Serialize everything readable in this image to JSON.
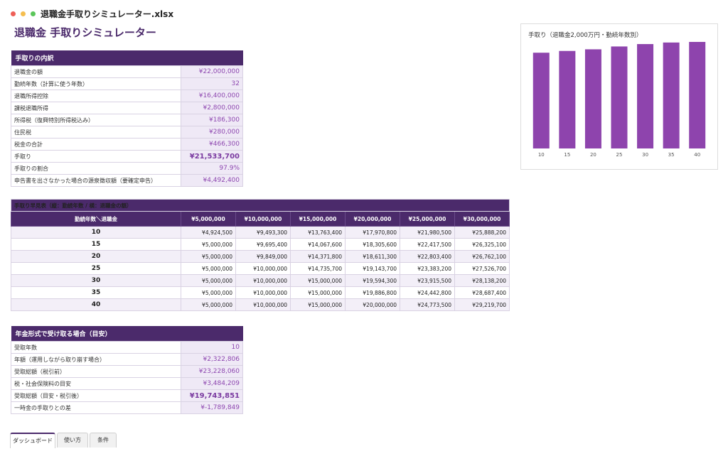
{
  "window": {
    "title": "退職金手取りシミュレーター.xlsx"
  },
  "page": {
    "title": "退職金 手取りシミュレーター"
  },
  "breakdown": {
    "header": "手取りの内訳",
    "rows": [
      {
        "label": "退職金の額",
        "value": "¥22,000,000"
      },
      {
        "label": "勤続年数（計算に使う年数）",
        "value": "32"
      },
      {
        "label": "退職所得控除",
        "value": "¥16,400,000"
      },
      {
        "label": "課税退職所得",
        "value": "¥2,800,000"
      },
      {
        "label": "所得税（復興特別所得税込み）",
        "value": "¥186,300"
      },
      {
        "label": "住民税",
        "value": "¥280,000"
      },
      {
        "label": "税金の合計",
        "value": "¥466,300"
      },
      {
        "label": "手取り",
        "value": "¥21,533,700"
      },
      {
        "label": "手取りの割合",
        "value": "97.9%"
      },
      {
        "label": "申告書を出さなかった場合の源泉徴収額（要確定申告）",
        "value": "¥4,492,400"
      }
    ]
  },
  "quicktable": {
    "header": "手取り早見表（縦：勤続年数 / 横：退職金の額）",
    "corner": "勤続年数＼退職金",
    "columns": [
      "¥5,000,000",
      "¥10,000,000",
      "¥15,000,000",
      "¥20,000,000",
      "¥25,000,000",
      "¥30,000,000"
    ],
    "rows": [
      {
        "years": "10",
        "values": [
          "¥4,924,500",
          "¥9,493,300",
          "¥13,763,400",
          "¥17,970,800",
          "¥21,980,500",
          "¥25,888,200"
        ]
      },
      {
        "years": "15",
        "values": [
          "¥5,000,000",
          "¥9,695,400",
          "¥14,067,600",
          "¥18,305,600",
          "¥22,417,500",
          "¥26,325,100"
        ]
      },
      {
        "years": "20",
        "values": [
          "¥5,000,000",
          "¥9,849,000",
          "¥14,371,800",
          "¥18,611,300",
          "¥22,803,400",
          "¥26,762,100"
        ]
      },
      {
        "years": "25",
        "values": [
          "¥5,000,000",
          "¥10,000,000",
          "¥14,735,700",
          "¥19,143,700",
          "¥23,383,200",
          "¥27,526,700"
        ]
      },
      {
        "years": "30",
        "values": [
          "¥5,000,000",
          "¥10,000,000",
          "¥15,000,000",
          "¥19,594,300",
          "¥23,915,500",
          "¥28,138,200"
        ]
      },
      {
        "years": "35",
        "values": [
          "¥5,000,000",
          "¥10,000,000",
          "¥15,000,000",
          "¥19,886,800",
          "¥24,442,800",
          "¥28,687,400"
        ]
      },
      {
        "years": "40",
        "values": [
          "¥5,000,000",
          "¥10,000,000",
          "¥15,000,000",
          "¥20,000,000",
          "¥24,773,500",
          "¥29,219,700"
        ]
      }
    ]
  },
  "pension": {
    "header": "年金形式で受け取る場合（目安）",
    "rows": [
      {
        "label": "受取年数",
        "value": "10"
      },
      {
        "label": "年額（運用しながら取り崩す場合）",
        "value": "¥2,322,806"
      },
      {
        "label": "受取総額（税引前）",
        "value": "¥23,228,060"
      },
      {
        "label": "税・社会保険料の目安",
        "value": "¥3,484,209"
      },
      {
        "label": "受取総額（目安・税引後）",
        "value": "¥19,743,851"
      },
      {
        "label": "一時金の手取りとの差",
        "value": "¥-1,789,849"
      }
    ]
  },
  "chart_data": {
    "type": "bar",
    "title": "手取り（退職金2,000万円・勤続年数別）",
    "categories": [
      "10",
      "15",
      "20",
      "25",
      "30",
      "35",
      "40"
    ],
    "values": [
      17970800,
      18305600,
      18611300,
      19143700,
      19594300,
      19886800,
      20000000
    ],
    "ylim": [
      0,
      20000000
    ],
    "grid": false,
    "color": "#8e44ad"
  },
  "tabs": [
    {
      "label": "ダッシュボード",
      "active": true
    },
    {
      "label": "使い方",
      "active": false
    },
    {
      "label": "条件",
      "active": false
    }
  ]
}
